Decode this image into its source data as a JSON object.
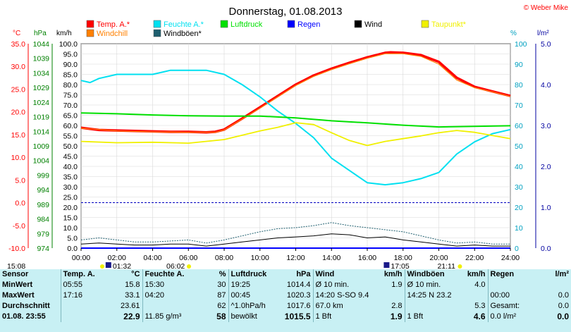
{
  "colors": {
    "temp": "#ff0000",
    "windchill": "#ff8000",
    "humidity": "#00e0f0",
    "pressure": "#00e000",
    "rain": "#0000ff",
    "wind": "#000000",
    "gusts": "#1f5f6f",
    "dewpoint": "#f0f000",
    "axis_c": "#ff0000",
    "axis_hpa": "#008000",
    "axis_pct": "#00a0c0",
    "axis_rain": "#0000a0"
  },
  "chart_data": {
    "type": "line",
    "title": "Donnerstag, 01.08.2013",
    "copyright": "© Weber Mike",
    "unit_labels": {
      "c": "°C",
      "hpa": "hPa",
      "kmh": "km/h",
      "pct": "%",
      "rain": "l/m²"
    },
    "legend": [
      {
        "name": "Temp. A.*",
        "color_key": "temp"
      },
      {
        "name": "Feuchte A.*",
        "color_key": "humidity"
      },
      {
        "name": "Luftdruck",
        "color_key": "pressure"
      },
      {
        "name": "Regen",
        "color_key": "rain"
      },
      {
        "name": "Wind",
        "color_key": "wind"
      },
      {
        "name": "Taupunkt*",
        "color_key": "dewpoint"
      },
      {
        "name": "Windchill",
        "color_key": "windchill"
      },
      {
        "name": "Windböen*",
        "color_key": "gusts"
      }
    ],
    "x_ticks": [
      "00:00",
      "02:00",
      "04:00",
      "06:00",
      "08:00",
      "10:00",
      "12:00",
      "14:00",
      "16:00",
      "18:00",
      "20:00",
      "22:00",
      "24:00"
    ],
    "xlim": [
      0,
      24
    ],
    "axes": {
      "c": {
        "ylim": [
          -10,
          35
        ],
        "ticks": [
          "35.0",
          "30.0",
          "25.0",
          "20.0",
          "15.0",
          "10.0",
          "5.0",
          "0.0",
          "-5.0",
          "-10.0"
        ]
      },
      "hpa": {
        "ylim": [
          974,
          1044
        ],
        "ticks": [
          "1044",
          "1039",
          "1034",
          "1029",
          "1024",
          "1019",
          "1014",
          "1009",
          "1004",
          "999",
          "994",
          "989",
          "984",
          "979",
          "974"
        ]
      },
      "kmh": {
        "ylim": [
          0,
          100
        ],
        "ticks": [
          "100.0",
          "95.0",
          "90.0",
          "85.0",
          "80.0",
          "75.0",
          "70.0",
          "65.0",
          "60.0",
          "55.0",
          "50.0",
          "45.0",
          "40.0",
          "35.0",
          "30.0",
          "25.0",
          "20.0",
          "15.0",
          "10.0",
          "5.0",
          "0.0"
        ]
      },
      "pct": {
        "ylim": [
          0,
          100
        ],
        "ticks": [
          "100",
          "90",
          "80",
          "70",
          "60",
          "50",
          "40",
          "30",
          "20",
          "10",
          "0"
        ]
      },
      "rain": {
        "ylim": [
          0,
          5
        ],
        "ticks": [
          "5.0",
          "4.0",
          "3.0",
          "2.0",
          "1.0",
          "0.0"
        ]
      }
    },
    "zero_line_c": 0,
    "series": [
      {
        "name": "Temp. A.*",
        "axis": "c",
        "color_key": "temp",
        "x": [
          0,
          1,
          2,
          3,
          4,
          5,
          6,
          7,
          7.5,
          8,
          9,
          10,
          11,
          12,
          13,
          14,
          15,
          16,
          17,
          17.3,
          18,
          19,
          20,
          21,
          22,
          23,
          24
        ],
        "y": [
          16.5,
          16.0,
          15.9,
          15.8,
          15.7,
          15.6,
          15.6,
          15.5,
          15.6,
          16.1,
          18.5,
          21.0,
          23.5,
          26.0,
          28.0,
          29.5,
          30.8,
          32.0,
          33.0,
          33.1,
          33.0,
          32.5,
          31.0,
          27.5,
          25.5,
          24.5,
          23.5
        ]
      },
      {
        "name": "Windchill",
        "axis": "c",
        "color_key": "windchill",
        "x": [
          0,
          2,
          4,
          6,
          7.5,
          8,
          9,
          10,
          11,
          12,
          13,
          14,
          15,
          16,
          17,
          18,
          19,
          20,
          21,
          22,
          23,
          24
        ],
        "y": [
          16.4,
          15.8,
          15.6,
          15.5,
          15.5,
          16.0,
          18.4,
          20.8,
          23.3,
          25.8,
          27.8,
          29.3,
          30.6,
          31.8,
          32.8,
          32.8,
          32.2,
          30.5,
          27.0,
          25.3,
          24.4,
          23.4
        ]
      },
      {
        "name": "Feuchte A.*",
        "axis": "pct",
        "color_key": "humidity",
        "x": [
          0,
          0.5,
          1,
          2,
          3,
          4,
          4.5,
          5,
          6,
          7,
          8,
          9,
          10,
          11,
          12,
          13,
          13.5,
          14,
          15,
          16,
          17,
          18,
          19,
          20,
          21,
          22,
          23,
          24
        ],
        "y": [
          82,
          81,
          83,
          85,
          85,
          85,
          86,
          87,
          87,
          87,
          85,
          80,
          74,
          67,
          61,
          54,
          49,
          44,
          38,
          32,
          31,
          32,
          34,
          37,
          46,
          52,
          56,
          58
        ]
      },
      {
        "name": "Luftdruck",
        "axis": "hpa",
        "color_key": "pressure",
        "x": [
          0,
          2,
          4,
          6,
          8,
          10,
          12,
          14,
          16,
          18,
          20,
          22,
          24
        ],
        "y": [
          1020.3,
          1020.0,
          1019.6,
          1019.3,
          1019.2,
          1019.2,
          1018.6,
          1017.6,
          1016.9,
          1016.1,
          1015.5,
          1015.7,
          1015.9
        ]
      },
      {
        "name": "Taupunkt*",
        "axis": "c",
        "color_key": "dewpoint",
        "x": [
          0,
          2,
          4,
          6,
          8,
          10,
          11,
          12,
          13,
          14,
          15,
          16,
          17,
          18,
          19,
          20,
          21,
          22,
          23,
          24
        ],
        "y": [
          13.5,
          13.2,
          13.3,
          13.1,
          13.9,
          15.8,
          16.6,
          17.6,
          17.2,
          15.4,
          13.7,
          12.6,
          13.5,
          14.1,
          14.7,
          15.4,
          15.9,
          15.5,
          14.8,
          14.1
        ]
      },
      {
        "name": "Wind",
        "axis": "kmh",
        "color_key": "wind",
        "x": [
          0,
          1,
          2,
          3,
          4,
          5,
          6,
          7,
          8,
          9,
          10,
          11,
          12,
          13,
          14,
          15,
          16,
          17,
          18,
          19,
          20,
          21,
          22,
          23,
          24
        ],
        "y": [
          2,
          2.5,
          2,
          1.5,
          1.5,
          2,
          2,
          1,
          2,
          3,
          4,
          5,
          5.5,
          6,
          7,
          6.5,
          5,
          5.5,
          4,
          3,
          2,
          1,
          1.5,
          1,
          1
        ]
      },
      {
        "name": "Windböen*",
        "axis": "kmh",
        "color_key": "gusts",
        "x": [
          0,
          1,
          2,
          3,
          4,
          5,
          6,
          7,
          8,
          9,
          10,
          11,
          12,
          13,
          14,
          15,
          16,
          17,
          18,
          19,
          20,
          21,
          22,
          23,
          24
        ],
        "y": [
          4,
          5,
          4,
          3,
          3,
          3.5,
          4,
          2.5,
          4,
          6,
          8,
          9.5,
          10,
          11,
          12.5,
          11,
          10,
          9,
          8,
          6,
          4,
          2.5,
          3,
          2,
          2
        ]
      },
      {
        "name": "Regen",
        "axis": "rain",
        "color_key": "rain",
        "x": [
          0,
          24
        ],
        "y": [
          0,
          0
        ]
      }
    ],
    "extremes_low": [
      {
        "x": 0,
        "label": "15:08"
      },
      {
        "x": 6.03,
        "label": "06:02"
      },
      {
        "x": 21.18,
        "label": "21:11"
      }
    ],
    "extremes_flag": [
      {
        "x": 1.53,
        "label": "01:32"
      },
      {
        "x": 17.08,
        "label": "17:05"
      }
    ]
  },
  "table": {
    "headers": [
      "Sensor",
      "Temp. A.",
      "°C",
      "Feuchte A.",
      "%",
      "Luftdruck",
      "hPa",
      "Wind",
      "km/h",
      "Windböen",
      "km/h",
      "Regen",
      "l/m²"
    ],
    "rows": [
      [
        "MinWert",
        "05:55",
        "15.8",
        "15:30",
        "30",
        "19:25",
        "1014.4",
        "Ø 10 min.",
        "1.9",
        "Ø 10 min.",
        "4.0",
        "",
        ""
      ],
      [
        "MaxWert",
        "17:16",
        "33.1",
        "04:20",
        "87",
        "00:45",
        "1020.3",
        "14:20  S-SO 9.4",
        "",
        "14:25    N 23.2",
        "",
        "00:00",
        "0.0"
      ],
      [
        "Durchschnitt",
        "",
        "23.61",
        "",
        "62",
        "^1.0hPa/h",
        "1017.6",
        "67.0 km",
        "2.8",
        "",
        "5.3",
        "Gesamt:",
        "0.0"
      ],
      [
        "01.08. 23:55",
        "",
        "22.9",
        "11.85 g/m³",
        "58",
        "bewölkt",
        "1015.5",
        "1 Bft",
        "1.9",
        "1 Bft",
        "4.6",
        "0.0 l/m²",
        "0.0"
      ]
    ]
  }
}
